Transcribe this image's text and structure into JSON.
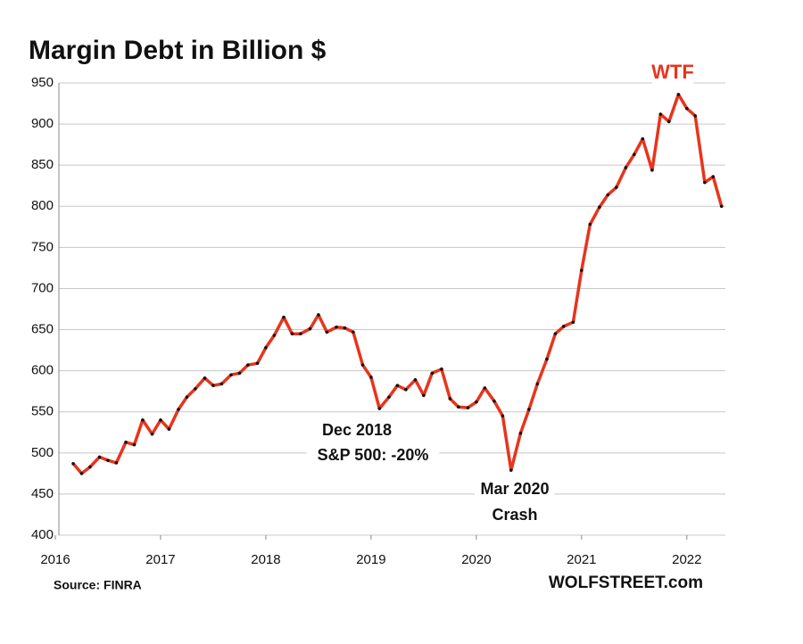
{
  "chart_data": {
    "type": "line",
    "title": "Margin Debt in Billion $",
    "x": [
      2016.17,
      2016.25,
      2016.33,
      2016.42,
      2016.5,
      2016.58,
      2016.67,
      2016.75,
      2016.83,
      2016.92,
      2017.0,
      2017.08,
      2017.17,
      2017.25,
      2017.33,
      2017.42,
      2017.5,
      2017.58,
      2017.67,
      2017.75,
      2017.83,
      2017.92,
      2018.0,
      2018.08,
      2018.17,
      2018.25,
      2018.33,
      2018.42,
      2018.5,
      2018.58,
      2018.67,
      2018.75,
      2018.83,
      2018.92,
      2019.0,
      2019.08,
      2019.17,
      2019.25,
      2019.33,
      2019.42,
      2019.5,
      2019.58,
      2019.67,
      2019.75,
      2019.83,
      2019.92,
      2020.0,
      2020.08,
      2020.17,
      2020.25,
      2020.33,
      2020.42,
      2020.5,
      2020.58,
      2020.67,
      2020.75,
      2020.83,
      2020.92,
      2021.0,
      2021.08,
      2021.17,
      2021.25,
      2021.33,
      2021.42,
      2021.5,
      2021.58,
      2021.67,
      2021.75,
      2021.83,
      2021.92,
      2022.0,
      2022.08,
      2022.17,
      2022.25,
      2022.33
    ],
    "series": [
      {
        "color": "#e8341c",
        "marker_color": "#111111",
        "values": [
          487,
          475,
          483,
          495,
          491,
          488,
          513,
          510,
          540,
          523,
          540,
          529,
          553,
          568,
          578,
          591,
          582,
          584,
          595,
          597,
          607,
          609,
          628,
          643,
          665,
          645,
          645,
          651,
          668,
          647,
          653,
          652,
          647,
          607,
          592,
          554,
          568,
          582,
          577,
          589,
          570,
          597,
          602,
          566,
          556,
          555,
          562,
          579,
          563,
          545,
          479,
          524,
          553,
          584,
          614,
          645,
          654,
          659,
          722,
          778,
          799,
          814,
          823,
          847,
          863,
          882,
          844,
          912,
          903,
          936,
          919,
          910,
          829,
          836,
          800
        ]
      }
    ],
    "xlim": [
      2016,
      2022.4
    ],
    "xticks": [
      2016,
      2017,
      2018,
      2019,
      2020,
      2021,
      2022
    ],
    "ylim": [
      400,
      950
    ],
    "yticks": [
      400,
      450,
      500,
      550,
      600,
      650,
      700,
      750,
      800,
      850,
      900,
      950
    ],
    "grid": true,
    "annotations": [
      {
        "text": "WTF",
        "color": "#e8341c"
      },
      {
        "text": "Dec 2018",
        "color": "#111111"
      },
      {
        "text": "S&P 500:  -20%",
        "color": "#111111"
      },
      {
        "text": "Mar 2020",
        "color": "#111111"
      },
      {
        "text": "Crash",
        "color": "#111111"
      }
    ],
    "source": "Source: FINRA",
    "credit": "WOLFSTREET.com"
  }
}
